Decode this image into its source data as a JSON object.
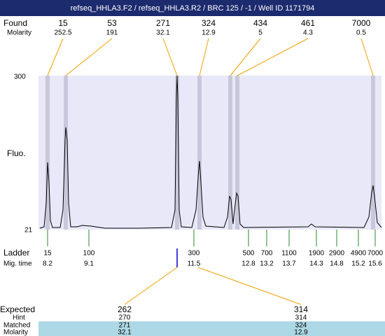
{
  "header": {
    "title": "refseq_HHLA3.F2 / refseq_HHLA3.R2 / BRC 125 / -1 / Well ID 1171794"
  },
  "found": {
    "label": "Found",
    "sublabel": "Molarity",
    "peaks": [
      {
        "size": 15,
        "molarity": 252.5
      },
      {
        "size": 53,
        "molarity": 191
      },
      {
        "size": 271,
        "molarity": 32.1
      },
      {
        "size": 324,
        "molarity": 12.9
      },
      {
        "size": 434,
        "molarity": 5
      },
      {
        "size": 461,
        "molarity": 4.3
      },
      {
        "size": 7000,
        "molarity": 0.5
      }
    ]
  },
  "axis": {
    "label": "Fluo.",
    "top": 300,
    "bottom": 21
  },
  "ladder": {
    "label": "Ladder",
    "sublabel": "Mig. time",
    "items": [
      {
        "size": 15,
        "time": 8.2
      },
      {
        "size": 100,
        "time": 9.1
      },
      {
        "size": 300,
        "time": 11.5
      },
      {
        "size": 500,
        "time": 12.8
      },
      {
        "size": 700,
        "time": 13.2
      },
      {
        "size": 1100,
        "time": 13.7
      },
      {
        "size": 1900,
        "time": 14.3
      },
      {
        "size": 2900,
        "time": 14.8
      },
      {
        "size": 4900,
        "time": 15.2
      },
      {
        "size": 7000,
        "time": 15.6
      }
    ]
  },
  "expected": {
    "labels": [
      "Expected",
      "Hint",
      "Matched",
      "Molarity"
    ],
    "columns": [
      {
        "expected": 262,
        "hint": 270,
        "matched": 271,
        "molarity": 32.1
      },
      {
        "expected": 314,
        "hint": 314,
        "matched": 324,
        "molarity": 12.9
      }
    ]
  }
}
